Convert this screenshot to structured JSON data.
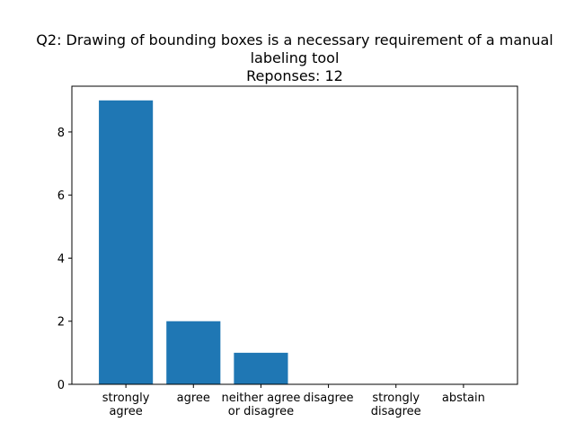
{
  "chart_data": {
    "type": "bar",
    "title_lines": [
      "Q2: Drawing of bounding boxes is a necessary requirement of a manual",
      "labeling tool",
      "Reponses: 12"
    ],
    "categories": [
      [
        "strongly",
        "agree"
      ],
      [
        "agree"
      ],
      [
        "neither agree",
        "or disagree"
      ],
      [
        "disagree"
      ],
      [
        "strongly",
        "disagree"
      ],
      [
        "abstain"
      ]
    ],
    "values": [
      9,
      2,
      1,
      0,
      0,
      0
    ],
    "yticks": [
      0,
      2,
      4,
      6,
      8
    ],
    "ylim": [
      0,
      9.45
    ],
    "bar_color": "#1f77b4",
    "grid": false,
    "xlabel": "",
    "ylabel": ""
  }
}
